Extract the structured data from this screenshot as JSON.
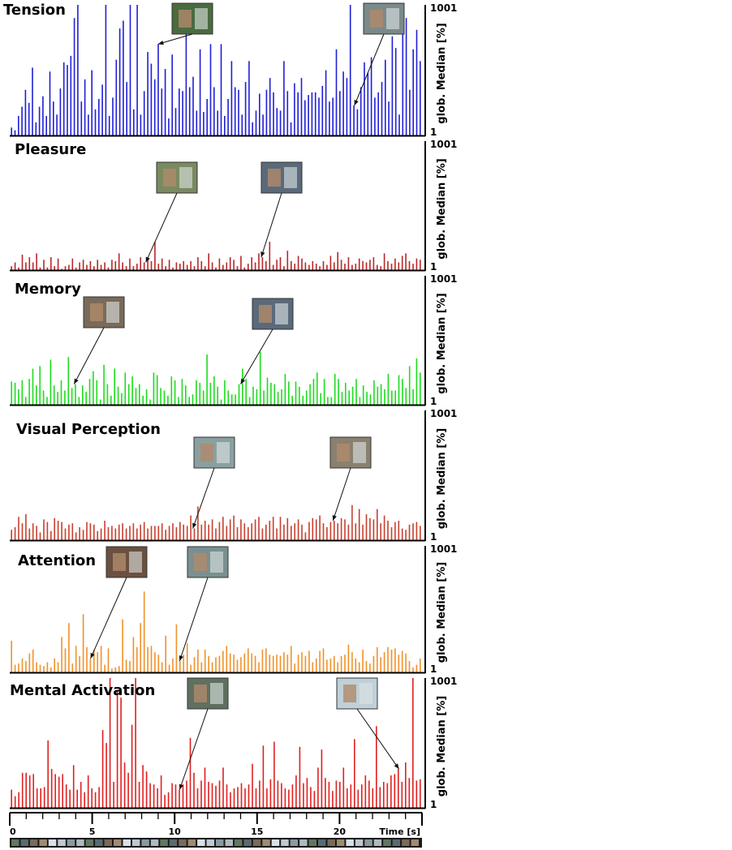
{
  "chart_data": {
    "type": "bar",
    "x_axis": {
      "label": "Time [s]",
      "range": [
        0,
        25
      ],
      "tick_labels": [
        "0",
        "5",
        "10",
        "15",
        "20"
      ],
      "tick_values": [
        0,
        5,
        10,
        15,
        20
      ]
    },
    "panels": [
      {
        "title": "Tension",
        "color": "#1f1fd6",
        "ylabel": "glob. Median [%]",
        "y_ticks": [
          "1001",
          "1"
        ],
        "ylim": [
          1,
          1001
        ],
        "thumbnails_at": [
          9.0,
          20.9
        ],
        "values": [
          60,
          40,
          150,
          220,
          350,
          250,
          520,
          100,
          220,
          300,
          150,
          490,
          260,
          160,
          360,
          560,
          540,
          610,
          900,
          1001,
          260,
          430,
          160,
          500,
          200,
          280,
          390,
          1001,
          150,
          290,
          580,
          820,
          880,
          410,
          1001,
          200,
          1001,
          160,
          340,
          640,
          550,
          430,
          700,
          360,
          510,
          130,
          620,
          210,
          360,
          340,
          1001,
          370,
          450,
          190,
          660,
          180,
          280,
          700,
          370,
          190,
          700,
          150,
          280,
          570,
          370,
          350,
          160,
          410,
          570,
          100,
          190,
          320,
          160,
          350,
          440,
          330,
          210,
          190,
          570,
          340,
          100,
          400,
          330,
          440,
          270,
          310,
          330,
          330,
          290,
          380,
          500,
          260,
          290,
          660,
          340,
          490,
          440,
          1001,
          230,
          200,
          370,
          560,
          480,
          600,
          290,
          330,
          410,
          580,
          260,
          760,
          670,
          160,
          780,
          900,
          350,
          660,
          810,
          570
        ]
      },
      {
        "title": "Pleasure",
        "color": "#b82828",
        "ylabel": "glob. Median [%]",
        "y_ticks": [
          "1001",
          "1"
        ],
        "ylim": [
          1,
          1001
        ],
        "thumbnails_at": [
          8.25,
          15.25
        ],
        "values": [
          30,
          60,
          20,
          120,
          60,
          100,
          60,
          130,
          20,
          80,
          20,
          100,
          30,
          90,
          10,
          30,
          40,
          90,
          20,
          60,
          80,
          40,
          70,
          30,
          80,
          40,
          60,
          20,
          80,
          70,
          130,
          60,
          30,
          90,
          30,
          50,
          100,
          60,
          80,
          70,
          220,
          50,
          90,
          30,
          80,
          20,
          60,
          50,
          70,
          40,
          70,
          30,
          100,
          70,
          30,
          130,
          60,
          20,
          90,
          40,
          60,
          100,
          80,
          30,
          110,
          20,
          50,
          100,
          60,
          130,
          100,
          70,
          220,
          40,
          80,
          100,
          30,
          150,
          70,
          50,
          110,
          90,
          60,
          40,
          70,
          50,
          30,
          70,
          40,
          110,
          60,
          140,
          80,
          50,
          100,
          40,
          50,
          90,
          70,
          60,
          80,
          100,
          40,
          30,
          130,
          70,
          50,
          90,
          60,
          110,
          130,
          70,
          50,
          90,
          80
        ]
      },
      {
        "title": "Memory",
        "color": "#1fdc1f",
        "ylabel": "glob. Median [%]",
        "y_ticks": [
          "1001",
          "1"
        ],
        "ylim": [
          1,
          1001
        ],
        "thumbnails_at": [
          3.9,
          14.0
        ],
        "values": [
          180,
          170,
          120,
          190,
          60,
          200,
          280,
          150,
          300,
          110,
          60,
          350,
          150,
          100,
          190,
          110,
          370,
          130,
          160,
          60,
          150,
          100,
          200,
          260,
          190,
          40,
          310,
          160,
          70,
          280,
          140,
          90,
          250,
          160,
          220,
          130,
          160,
          70,
          120,
          40,
          250,
          230,
          130,
          110,
          70,
          220,
          190,
          60,
          200,
          150,
          60,
          80,
          190,
          170,
          110,
          390,
          170,
          220,
          140,
          40,
          190,
          110,
          80,
          80,
          160,
          280,
          200,
          60,
          140,
          120,
          410,
          110,
          210,
          170,
          160,
          100,
          120,
          240,
          180,
          70,
          180,
          140,
          70,
          110,
          160,
          200,
          250,
          90,
          200,
          60,
          60,
          240,
          200,
          100,
          170,
          110,
          140,
          200,
          60,
          150,
          100,
          80,
          190,
          140,
          160,
          120,
          240,
          110,
          110,
          230,
          200,
          130,
          300,
          120,
          360,
          250
        ]
      },
      {
        "title": "Visual Perception",
        "color": "#c8402e",
        "ylabel": "glob. Median [%]",
        "y_ticks": [
          "1001",
          "1"
        ],
        "ylim": [
          1,
          1001
        ],
        "thumbnails_at": [
          11.1,
          19.6
        ],
        "values": [
          80,
          100,
          180,
          130,
          200,
          90,
          130,
          110,
          60,
          160,
          140,
          70,
          170,
          150,
          140,
          90,
          120,
          130,
          60,
          100,
          80,
          140,
          130,
          120,
          70,
          90,
          150,
          100,
          110,
          90,
          120,
          130,
          90,
          110,
          130,
          90,
          120,
          140,
          90,
          110,
          110,
          110,
          130,
          80,
          110,
          130,
          100,
          140,
          120,
          110,
          190,
          90,
          260,
          120,
          150,
          120,
          160,
          90,
          140,
          180,
          110,
          160,
          190,
          100,
          160,
          130,
          100,
          130,
          160,
          180,
          90,
          120,
          150,
          180,
          90,
          180,
          120,
          170,
          110,
          130,
          160,
          120,
          60,
          140,
          170,
          160,
          190,
          130,
          100,
          140,
          150,
          130,
          170,
          160,
          120,
          270,
          130,
          240,
          120,
          200,
          170,
          160,
          240,
          130,
          190,
          150,
          100,
          140,
          150,
          90,
          80,
          120,
          130,
          140,
          110
        ]
      },
      {
        "title": "Attention",
        "color": "#f0922a",
        "ylabel": "glob. Median [%]",
        "y_ticks": [
          "1001",
          "1"
        ],
        "ylim": [
          1,
          1001
        ],
        "thumbnails_at": [
          4.9,
          10.3
        ],
        "values": [
          250,
          60,
          70,
          110,
          90,
          150,
          180,
          80,
          60,
          50,
          80,
          40,
          110,
          80,
          280,
          190,
          390,
          70,
          210,
          130,
          460,
          200,
          110,
          180,
          160,
          210,
          60,
          190,
          30,
          40,
          50,
          420,
          100,
          90,
          280,
          200,
          390,
          640,
          200,
          210,
          160,
          140,
          80,
          290,
          60,
          110,
          380,
          90,
          140,
          230,
          60,
          120,
          180,
          80,
          180,
          130,
          80,
          120,
          130,
          170,
          210,
          150,
          140,
          100,
          120,
          150,
          190,
          150,
          130,
          80,
          180,
          190,
          140,
          130,
          140,
          130,
          160,
          140,
          210,
          70,
          140,
          160,
          130,
          170,
          80,
          110,
          170,
          190,
          100,
          110,
          130,
          80,
          130,
          140,
          220,
          160,
          110,
          80,
          180,
          90,
          70,
          130,
          200,
          120,
          160,
          200,
          180,
          190,
          140,
          170,
          150,
          90,
          40,
          60,
          110
        ]
      },
      {
        "title": "Mental Activation",
        "color": "#e02020",
        "ylabel": "glob. Median [%]",
        "y_ticks": [
          "1001",
          "1"
        ],
        "ylim": [
          1,
          1001
        ],
        "thumbnails_at": [
          10.3,
          23.6
        ],
        "values": [
          140,
          90,
          120,
          270,
          270,
          250,
          260,
          150,
          150,
          160,
          520,
          300,
          260,
          240,
          260,
          180,
          140,
          330,
          140,
          200,
          120,
          250,
          150,
          120,
          160,
          600,
          500,
          1001,
          200,
          900,
          850,
          350,
          270,
          640,
          1001,
          200,
          330,
          280,
          190,
          180,
          150,
          250,
          100,
          120,
          190,
          180,
          140,
          180,
          210,
          540,
          270,
          150,
          210,
          310,
          200,
          190,
          170,
          210,
          310,
          180,
          120,
          150,
          160,
          190,
          150,
          180,
          340,
          150,
          210,
          480,
          150,
          220,
          510,
          210,
          190,
          150,
          140,
          180,
          250,
          470,
          190,
          230,
          160,
          130,
          310,
          450,
          230,
          200,
          130,
          210,
          200,
          310,
          150,
          180,
          530,
          140,
          180,
          250,
          210,
          150,
          630,
          160,
          200,
          190,
          250,
          260,
          300,
          200,
          350,
          230,
          1001,
          210,
          220
        ]
      }
    ]
  }
}
